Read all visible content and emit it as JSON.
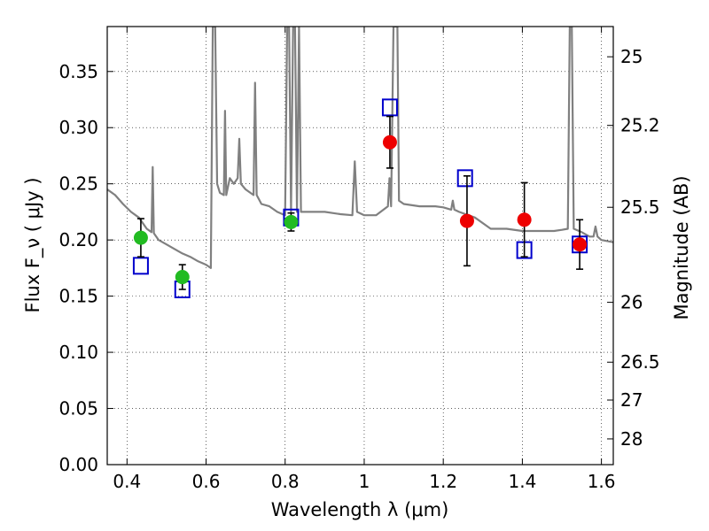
{
  "chart_data": {
    "type": "scatter",
    "xlabel": "Wavelength  λ (μm)",
    "ylabel": "Flux  F_ν  ( μJy )",
    "ylabel_right": "Magnitude (AB)",
    "xlim": [
      0.35,
      1.63
    ],
    "ylim": [
      0.0,
      0.39
    ],
    "grid": true,
    "x_ticks": [
      0.4,
      0.6,
      0.8,
      1.0,
      1.2,
      1.4,
      1.6
    ],
    "x_tick_labels": [
      "0.4",
      "0.6",
      "0.8",
      "1",
      "1.2",
      "1.4",
      "1.6"
    ],
    "y_ticks": [
      0.0,
      0.05,
      0.1,
      0.15,
      0.2,
      0.25,
      0.3,
      0.35
    ],
    "y_tick_labels": [
      "0.00",
      "0.05",
      "0.10",
      "0.15",
      "0.20",
      "0.25",
      "0.30",
      "0.35"
    ],
    "right_ticks": [
      {
        "label": "25",
        "flux": 0.3631
      },
      {
        "label": "25.2",
        "flux": 0.302
      },
      {
        "label": "25.5",
        "flux": 0.2291
      },
      {
        "label": "26",
        "flux": 0.1445
      },
      {
        "label": "26.5",
        "flux": 0.0912
      },
      {
        "label": "27",
        "flux": 0.0575
      },
      {
        "label": "28",
        "flux": 0.0229
      }
    ],
    "colors": {
      "sed": "#808080",
      "green_points": "#22bb22",
      "red_points": "#ee0000",
      "model_boxes": "#0000cc",
      "errorbars": "#000000"
    },
    "series": [
      {
        "kind": "line",
        "x": [
          0.35,
          0.37,
          0.39,
          0.41,
          0.43,
          0.45,
          0.462,
          0.465,
          0.468,
          0.48,
          0.5,
          0.52,
          0.54,
          0.56,
          0.58,
          0.6,
          0.612,
          0.617,
          0.62,
          0.623,
          0.628,
          0.635,
          0.645,
          0.648,
          0.651,
          0.66,
          0.67,
          0.68,
          0.684,
          0.688,
          0.7,
          0.72,
          0.724,
          0.728,
          0.74,
          0.76,
          0.78,
          0.8,
          0.805,
          0.81,
          0.815,
          0.82,
          0.825,
          0.83,
          0.835,
          0.84,
          0.85,
          0.87,
          0.9,
          0.94,
          0.97,
          0.976,
          0.982,
          1.0,
          1.03,
          1.06,
          1.064,
          1.068,
          1.074,
          1.08,
          1.084,
          1.088,
          1.1,
          1.14,
          1.18,
          1.2,
          1.22,
          1.224,
          1.228,
          1.24,
          1.28,
          1.32,
          1.36,
          1.4,
          1.44,
          1.48,
          1.5,
          1.515,
          1.52,
          1.525,
          1.53,
          1.55,
          1.57,
          1.58,
          1.585,
          1.59,
          1.6,
          1.63
        ],
        "y": [
          0.245,
          0.24,
          0.232,
          0.225,
          0.22,
          0.21,
          0.207,
          0.265,
          0.206,
          0.2,
          0.196,
          0.192,
          0.188,
          0.185,
          0.181,
          0.178,
          0.175,
          0.39,
          0.39,
          0.39,
          0.25,
          0.242,
          0.24,
          0.315,
          0.24,
          0.255,
          0.25,
          0.255,
          0.29,
          0.25,
          0.245,
          0.24,
          0.34,
          0.24,
          0.232,
          0.23,
          0.225,
          0.222,
          0.39,
          0.39,
          0.225,
          0.39,
          0.39,
          0.225,
          0.39,
          0.225,
          0.225,
          0.225,
          0.225,
          0.223,
          0.222,
          0.27,
          0.225,
          0.222,
          0.222,
          0.23,
          0.255,
          0.23,
          0.39,
          0.39,
          0.39,
          0.235,
          0.232,
          0.23,
          0.23,
          0.229,
          0.227,
          0.235,
          0.227,
          0.225,
          0.22,
          0.21,
          0.21,
          0.208,
          0.208,
          0.208,
          0.209,
          0.21,
          0.39,
          0.39,
          0.21,
          0.207,
          0.203,
          0.203,
          0.212,
          0.203,
          0.2,
          0.198
        ]
      },
      {
        "kind": "points",
        "marker": "circle",
        "color": "green",
        "x": [
          0.435,
          0.54,
          0.815
        ],
        "y": [
          0.202,
          0.167,
          0.216
        ],
        "err": [
          0.017,
          0.011,
          0.008
        ]
      },
      {
        "kind": "points",
        "marker": "circle",
        "color": "red",
        "x": [
          1.065,
          1.26,
          1.405,
          1.545
        ],
        "y": [
          0.287,
          0.217,
          0.218,
          0.196
        ],
        "err": [
          0.023,
          0.04,
          0.033,
          0.022
        ]
      },
      {
        "kind": "points",
        "marker": "open-square",
        "color": "blue",
        "x": [
          0.435,
          0.54,
          0.815,
          1.065,
          1.255,
          1.405,
          1.545
        ],
        "y": [
          0.177,
          0.156,
          0.22,
          0.318,
          0.255,
          0.191,
          0.196
        ]
      }
    ]
  }
}
